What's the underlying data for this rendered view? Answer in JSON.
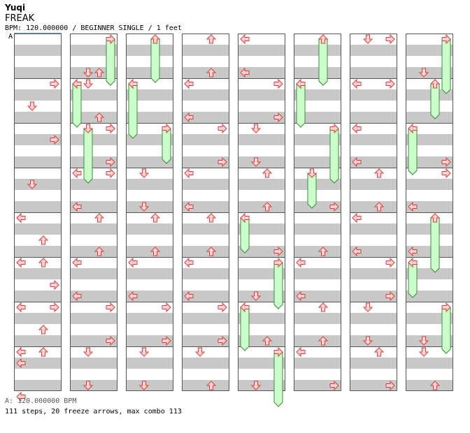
{
  "song": {
    "title": "Yuqi",
    "difficulty": "FREAK",
    "info": "BPM: 120.000000 / BEGINNER SINGLE / 1 feet",
    "marker": "A"
  },
  "footer": {
    "bpm": "A: 120.000000 BPM",
    "stats": "111 steps, 20 freeze arrows, max combo 113"
  },
  "colors": {
    "stripe": "#c8c8c8",
    "arrow_fill": "#ffd0d0",
    "arrow_stroke": "#d04040",
    "freeze_fill": "#ccffcc",
    "freeze_stroke": "#3a8a3a"
  },
  "chart_data": {
    "lanes": [
      "left",
      "down",
      "up",
      "right"
    ],
    "measures_per_column": 8,
    "columns": 8,
    "notes": [
      [
        [
          1,
          0,
          3,
          2,
          false
        ],
        [
          1,
          0,
          4,
          1,
          false
        ],
        [
          1,
          1,
          4,
          3,
          false
        ],
        [
          1,
          1,
          2,
          0,
          false
        ],
        [
          1,
          1,
          4,
          3,
          false
        ],
        [
          1,
          1,
          2,
          0,
          false
        ],
        [
          1,
          1,
          4,
          3,
          false
        ],
        [
          1,
          1,
          2,
          0,
          false
        ],
        [
          1,
          2,
          4,
          0,
          false
        ]
      ],
      [
        [
          0,
          1,
          0,
          3,
          false
        ],
        [
          0,
          1,
          2,
          1,
          false
        ],
        [
          0,
          2,
          1,
          3,
          false
        ],
        [
          0,
          3,
          1,
          1,
          false
        ],
        [
          0,
          3,
          4,
          0,
          false
        ],
        [
          0,
          4,
          2,
          2,
          false
        ],
        [
          0,
          4,
          4,
          2,
          false
        ],
        [
          0,
          5,
          2,
          3,
          false
        ],
        [
          0,
          5,
          4,
          3,
          false
        ],
        [
          0,
          6,
          2,
          2,
          false
        ],
        [
          0,
          6,
          4,
          2,
          false
        ],
        [
          0,
          7,
          1,
          0,
          false
        ],
        [
          0,
          7,
          4,
          0,
          false
        ],
        [
          0,
          4,
          0,
          0,
          false
        ],
        [
          0,
          4,
          4,
          0,
          false
        ],
        [
          0,
          5,
          0,
          0,
          false
        ],
        [
          0,
          5,
          4,
          0,
          false
        ],
        [
          0,
          6,
          0,
          0,
          false
        ],
        [
          0,
          6,
          4,
          0,
          false
        ],
        [
          0,
          7,
          0,
          0,
          false
        ]
      ],
      [
        [
          1,
          0,
          0,
          3,
          true
        ],
        [
          1,
          0,
          3,
          1,
          false
        ],
        [
          1,
          1,
          0,
          0,
          true
        ],
        [
          1,
          1,
          3,
          2,
          false
        ],
        [
          1,
          2,
          0,
          1,
          true
        ],
        [
          1,
          2,
          3,
          3,
          false
        ],
        [
          1,
          3,
          0,
          3,
          false
        ],
        [
          1,
          3,
          3,
          0,
          false
        ],
        [
          1,
          4,
          0,
          2,
          false
        ],
        [
          1,
          4,
          3,
          2,
          false
        ],
        [
          1,
          5,
          0,
          0,
          false
        ],
        [
          1,
          5,
          3,
          0,
          false
        ],
        [
          1,
          6,
          0,
          3,
          false
        ],
        [
          1,
          6,
          3,
          3,
          false
        ],
        [
          1,
          7,
          0,
          1,
          false
        ],
        [
          1,
          7,
          3,
          1,
          false
        ]
      ],
      [
        [
          2,
          0,
          0,
          2,
          true
        ],
        [
          2,
          1,
          0,
          0,
          true
        ],
        [
          2,
          2,
          0,
          3,
          true
        ],
        [
          2,
          3,
          0,
          1,
          false
        ],
        [
          2,
          3,
          3,
          1,
          false
        ],
        [
          2,
          4,
          0,
          2,
          false
        ],
        [
          2,
          4,
          3,
          2,
          false
        ],
        [
          2,
          5,
          0,
          0,
          false
        ],
        [
          2,
          5,
          3,
          0,
          false
        ],
        [
          2,
          6,
          0,
          3,
          false
        ],
        [
          2,
          6,
          3,
          3,
          false
        ],
        [
          2,
          7,
          0,
          1,
          false
        ],
        [
          2,
          7,
          3,
          1,
          false
        ]
      ],
      [
        [
          3,
          0,
          0,
          2,
          false
        ],
        [
          3,
          0,
          3,
          2,
          false
        ],
        [
          3,
          1,
          0,
          0,
          false
        ],
        [
          3,
          1,
          3,
          0,
          false
        ],
        [
          3,
          2,
          0,
          3,
          false
        ],
        [
          3,
          2,
          3,
          3,
          false
        ],
        [
          3,
          3,
          0,
          0,
          false
        ],
        [
          3,
          3,
          3,
          0,
          false
        ],
        [
          3,
          4,
          0,
          2,
          false
        ],
        [
          3,
          4,
          3,
          2,
          false
        ],
        [
          3,
          5,
          0,
          0,
          false
        ],
        [
          3,
          5,
          3,
          0,
          false
        ],
        [
          3,
          6,
          0,
          3,
          false
        ],
        [
          3,
          6,
          3,
          3,
          false
        ],
        [
          3,
          7,
          0,
          1,
          false
        ],
        [
          3,
          7,
          3,
          2,
          false
        ]
      ],
      [
        [
          4,
          0,
          0,
          0,
          false
        ],
        [
          4,
          0,
          3,
          0,
          false
        ],
        [
          4,
          1,
          0,
          3,
          false
        ],
        [
          4,
          1,
          3,
          3,
          false
        ],
        [
          4,
          2,
          0,
          1,
          false
        ],
        [
          4,
          2,
          3,
          1,
          false
        ],
        [
          4,
          3,
          0,
          2,
          false
        ],
        [
          4,
          3,
          3,
          2,
          false
        ],
        [
          4,
          4,
          0,
          0,
          true
        ],
        [
          4,
          4,
          3,
          3,
          false
        ],
        [
          4,
          5,
          0,
          3,
          true
        ],
        [
          4,
          5,
          3,
          1,
          false
        ],
        [
          4,
          6,
          0,
          0,
          true
        ],
        [
          4,
          6,
          3,
          2,
          false
        ],
        [
          4,
          7,
          0,
          3,
          true
        ],
        [
          4,
          7,
          3,
          1,
          false
        ]
      ],
      [
        [
          5,
          0,
          0,
          2,
          true
        ],
        [
          5,
          1,
          0,
          0,
          true
        ],
        [
          5,
          2,
          0,
          3,
          true
        ],
        [
          5,
          3,
          0,
          1,
          true
        ],
        [
          5,
          3,
          3,
          3,
          false
        ],
        [
          5,
          4,
          3,
          2,
          false
        ],
        [
          5,
          5,
          0,
          0,
          false
        ],
        [
          5,
          5,
          3,
          0,
          false
        ],
        [
          5,
          6,
          0,
          2,
          false
        ],
        [
          5,
          6,
          3,
          2,
          false
        ],
        [
          5,
          7,
          0,
          0,
          false
        ],
        [
          5,
          7,
          3,
          3,
          false
        ]
      ],
      [
        [
          6,
          0,
          0,
          1,
          false
        ],
        [
          6,
          0,
          0,
          3,
          false
        ],
        [
          6,
          1,
          0,
          0,
          false
        ],
        [
          6,
          1,
          0,
          3,
          false
        ],
        [
          6,
          2,
          0,
          0,
          false
        ],
        [
          6,
          2,
          3,
          0,
          false
        ],
        [
          6,
          3,
          0,
          2,
          false
        ],
        [
          6,
          3,
          3,
          2,
          false
        ],
        [
          6,
          4,
          0,
          0,
          false
        ],
        [
          6,
          4,
          3,
          0,
          false
        ],
        [
          6,
          5,
          0,
          3,
          false
        ],
        [
          6,
          5,
          3,
          3,
          false
        ],
        [
          6,
          6,
          0,
          1,
          false
        ],
        [
          6,
          6,
          3,
          1,
          false
        ],
        [
          6,
          7,
          0,
          2,
          false
        ],
        [
          6,
          7,
          3,
          3,
          false
        ]
      ],
      [
        [
          7,
          0,
          0,
          3,
          true
        ],
        [
          7,
          0,
          3,
          1,
          false
        ],
        [
          7,
          1,
          0,
          2,
          true
        ],
        [
          7,
          2,
          0,
          0,
          true
        ],
        [
          7,
          2,
          3,
          3,
          false
        ],
        [
          7,
          3,
          0,
          3,
          false
        ],
        [
          7,
          3,
          3,
          0,
          false
        ],
        [
          7,
          4,
          0,
          2,
          true
        ],
        [
          7,
          4,
          3,
          0,
          false
        ],
        [
          7,
          5,
          0,
          0,
          true
        ],
        [
          7,
          6,
          0,
          3,
          true
        ],
        [
          7,
          6,
          3,
          1,
          false
        ],
        [
          7,
          7,
          0,
          1,
          false
        ],
        [
          7,
          7,
          3,
          2,
          false
        ]
      ]
    ]
  }
}
